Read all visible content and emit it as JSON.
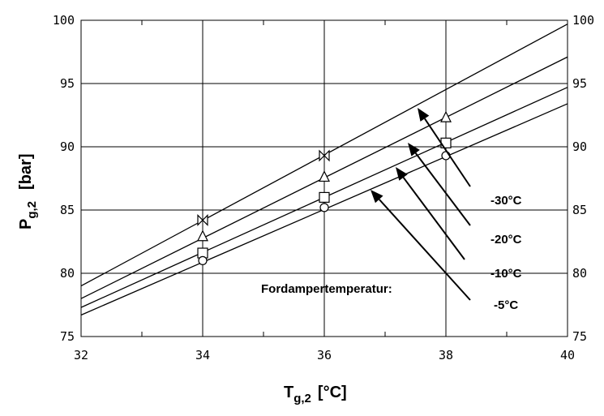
{
  "chart_data": {
    "type": "line",
    "xlim": [
      32,
      40
    ],
    "ylim": [
      75,
      100
    ],
    "x_ticks": [
      "32",
      "34",
      "36",
      "38",
      "40"
    ],
    "y_ticks": [
      "75",
      "80",
      "85",
      "90",
      "95",
      "100"
    ],
    "grid": true,
    "xlabel": {
      "main": "T",
      "sub": "g,2",
      "unit": "[°C]"
    },
    "ylabel": {
      "main": "P",
      "sub": "g,2",
      "unit": "[bar]"
    },
    "annotation_title": "Fordampertemperatur:",
    "series": [
      {
        "name": "-30°C",
        "marker": "bowtie",
        "line": [
          [
            32,
            79.0
          ],
          [
            40,
            99.7
          ]
        ],
        "points": [
          [
            34,
            84.2
          ],
          [
            36,
            89.3
          ]
        ]
      },
      {
        "name": "-20°C",
        "marker": "triangle",
        "line": [
          [
            32,
            78.0
          ],
          [
            40,
            97.1
          ]
        ],
        "points": [
          [
            34,
            82.9
          ],
          [
            36,
            87.6
          ],
          [
            38,
            92.3
          ]
        ]
      },
      {
        "name": "-10°C",
        "marker": "square",
        "line": [
          [
            32,
            77.3
          ],
          [
            40,
            94.7
          ]
        ],
        "points": [
          [
            34,
            81.6
          ],
          [
            36,
            86.0
          ],
          [
            38,
            90.3
          ]
        ]
      },
      {
        "name": "-5°C",
        "marker": "circle",
        "line": [
          [
            32,
            76.7
          ],
          [
            40,
            93.4
          ]
        ],
        "points": [
          [
            34,
            81.0
          ],
          [
            36,
            85.2
          ],
          [
            38,
            89.3
          ]
        ]
      }
    ]
  }
}
